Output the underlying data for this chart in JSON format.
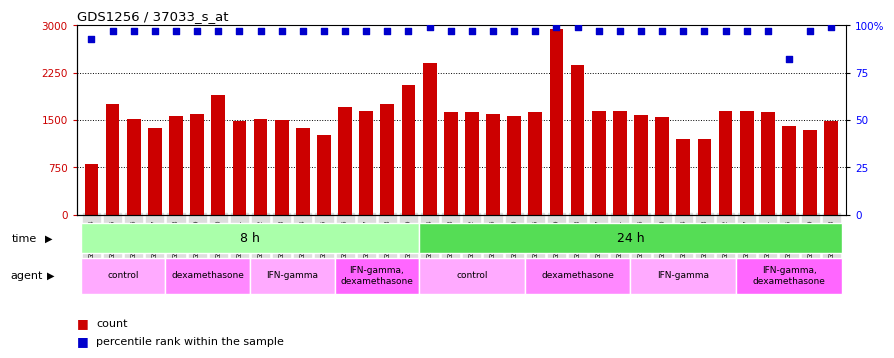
{
  "title": "GDS1256 / 37033_s_at",
  "samples": [
    "GSM31694",
    "GSM31695",
    "GSM31696",
    "GSM31697",
    "GSM31698",
    "GSM31699",
    "GSM31700",
    "GSM31701",
    "GSM31702",
    "GSM31703",
    "GSM31704",
    "GSM31705",
    "GSM31706",
    "GSM31707",
    "GSM31708",
    "GSM31709",
    "GSM31674",
    "GSM31678",
    "GSM31682",
    "GSM31686",
    "GSM31690",
    "GSM31675",
    "GSM31679",
    "GSM31683",
    "GSM31687",
    "GSM31691",
    "GSM31676",
    "GSM31680",
    "GSM31684",
    "GSM31688",
    "GSM31692",
    "GSM31677",
    "GSM31681",
    "GSM31685",
    "GSM31689",
    "GSM31693"
  ],
  "counts": [
    800,
    1750,
    1520,
    1380,
    1560,
    1600,
    1900,
    1490,
    1520,
    1500,
    1380,
    1260,
    1700,
    1640,
    1750,
    2050,
    2400,
    1620,
    1620,
    1600,
    1570,
    1620,
    2950,
    2380,
    1640,
    1640,
    1580,
    1550,
    1200,
    1200,
    1650,
    1640,
    1620,
    1400,
    1350,
    1490
  ],
  "percentiles": [
    93,
    97,
    97,
    97,
    97,
    97,
    97,
    97,
    97,
    97,
    97,
    97,
    97,
    97,
    97,
    97,
    99,
    97,
    97,
    97,
    97,
    97,
    99,
    99,
    97,
    97,
    97,
    97,
    97,
    97,
    97,
    97,
    97,
    82,
    97,
    99
  ],
  "bar_color": "#cc0000",
  "dot_color": "#0000cc",
  "ylim_left": [
    0,
    3000
  ],
  "ylim_right": [
    0,
    100
  ],
  "yticks_left": [
    0,
    750,
    1500,
    2250,
    3000
  ],
  "yticks_right": [
    0,
    25,
    50,
    75,
    100
  ],
  "time_groups": [
    {
      "label": "8 h",
      "start": 0,
      "end": 16,
      "color": "#aaffaa"
    },
    {
      "label": "24 h",
      "start": 16,
      "end": 36,
      "color": "#55dd55"
    }
  ],
  "agent_groups": [
    {
      "label": "control",
      "start": 0,
      "end": 4,
      "color": "#ffaaff"
    },
    {
      "label": "dexamethasone",
      "start": 4,
      "end": 8,
      "color": "#ff88ff"
    },
    {
      "label": "IFN-gamma",
      "start": 8,
      "end": 12,
      "color": "#ffaaff"
    },
    {
      "label": "IFN-gamma,\ndexamethasone",
      "start": 12,
      "end": 16,
      "color": "#ff66ff"
    },
    {
      "label": "control",
      "start": 16,
      "end": 21,
      "color": "#ffaaff"
    },
    {
      "label": "dexamethasone",
      "start": 21,
      "end": 26,
      "color": "#ff88ff"
    },
    {
      "label": "IFN-gamma",
      "start": 26,
      "end": 31,
      "color": "#ffaaff"
    },
    {
      "label": "IFN-gamma,\ndexamethasone",
      "start": 31,
      "end": 36,
      "color": "#ff66ff"
    }
  ],
  "bg_color": "#ffffff"
}
